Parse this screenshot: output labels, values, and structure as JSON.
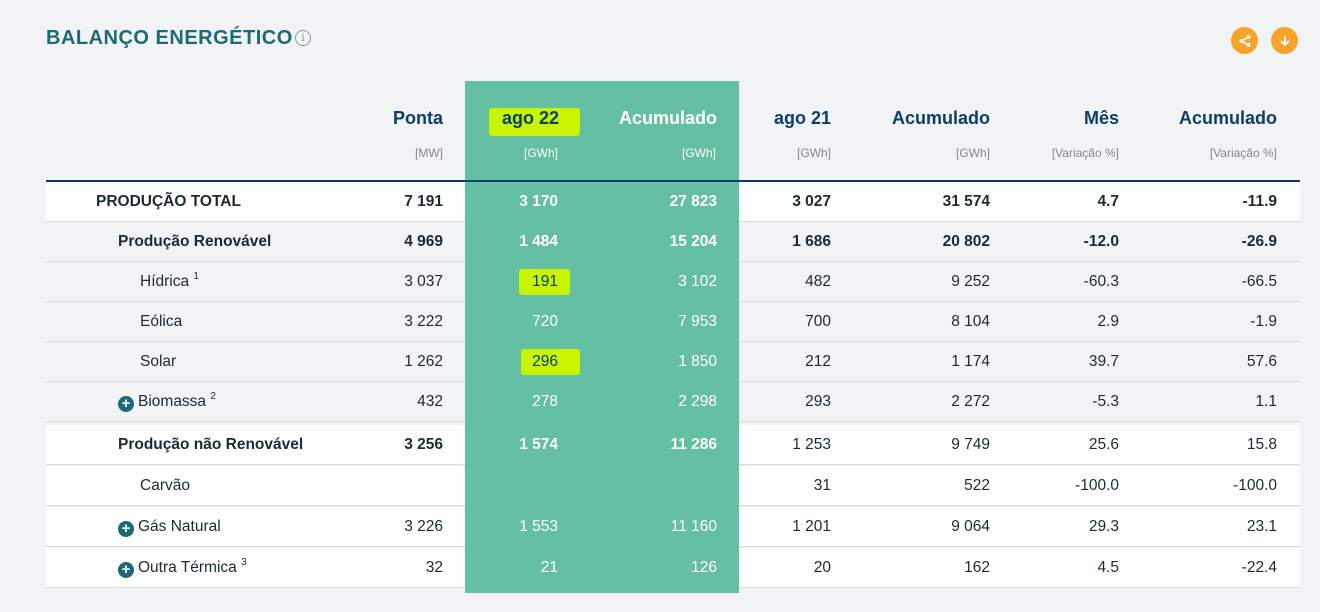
{
  "header": {
    "title": "BALANÇO ENERGÉTICO",
    "info_glyph": "i",
    "share_icon": "share-icon",
    "download_icon": "download-icon",
    "accent_color": "#f7a328",
    "highlight_column_color": "#65bfa2",
    "marker_color": "#c7f400"
  },
  "columns": [
    {
      "label": "Ponta",
      "unit": "[MW]"
    },
    {
      "label": "ago 22",
      "unit": "[GWh]"
    },
    {
      "label": "Acumulado",
      "unit": "[GWh]"
    },
    {
      "label": "ago 21",
      "unit": "[GWh]"
    },
    {
      "label": "Acumulado",
      "unit": "[GWh]"
    },
    {
      "label": "Mês",
      "unit": "[Variação %]"
    },
    {
      "label": "Acumulado",
      "unit": "[Variação %]"
    }
  ],
  "rows": [
    {
      "label": "PRODUÇÃO TOTAL",
      "sup": "",
      "values": [
        "7 191",
        "3 170",
        "27 823",
        "3 027",
        "31 574",
        "4.7",
        "-11.9"
      ]
    },
    {
      "label": "Produção Renovável",
      "sup": "",
      "values": [
        "4 969",
        "1 484",
        "15 204",
        "1 686",
        "20 802",
        "-12.0",
        "-26.9"
      ]
    },
    {
      "label": "Hídrica",
      "sup": "1",
      "values": [
        "3 037",
        "191",
        "3 102",
        "482",
        "9 252",
        "-60.3",
        "-66.5"
      ]
    },
    {
      "label": "Eólica",
      "sup": "",
      "values": [
        "3 222",
        "720",
        "7 953",
        "700",
        "8 104",
        "2.9",
        "-1.9"
      ]
    },
    {
      "label": "Solar",
      "sup": "",
      "values": [
        "1 262",
        "296",
        "1 850",
        "212",
        "1 174",
        "39.7",
        "57.6"
      ]
    },
    {
      "label": "Biomassa",
      "sup": "2",
      "values": [
        "432",
        "278",
        "2 298",
        "293",
        "2 272",
        "-5.3",
        "1.1"
      ]
    },
    {
      "label": "Produção não Renovável",
      "sup": "",
      "values": [
        "3 256",
        "1 574",
        "11 286",
        "1 253",
        "9 749",
        "25.6",
        "15.8"
      ]
    },
    {
      "label": "Carvão",
      "sup": "",
      "values": [
        "",
        "",
        "",
        "31",
        "522",
        "-100.0",
        "-100.0"
      ]
    },
    {
      "label": "Gás Natural",
      "sup": "",
      "values": [
        "3 226",
        "1 553",
        "11 160",
        "1 201",
        "9 064",
        "29.3",
        "23.1"
      ]
    },
    {
      "label": "Outra Térmica",
      "sup": "3",
      "values": [
        "32",
        "21",
        "126",
        "20",
        "162",
        "4.5",
        "-22.4"
      ]
    }
  ]
}
